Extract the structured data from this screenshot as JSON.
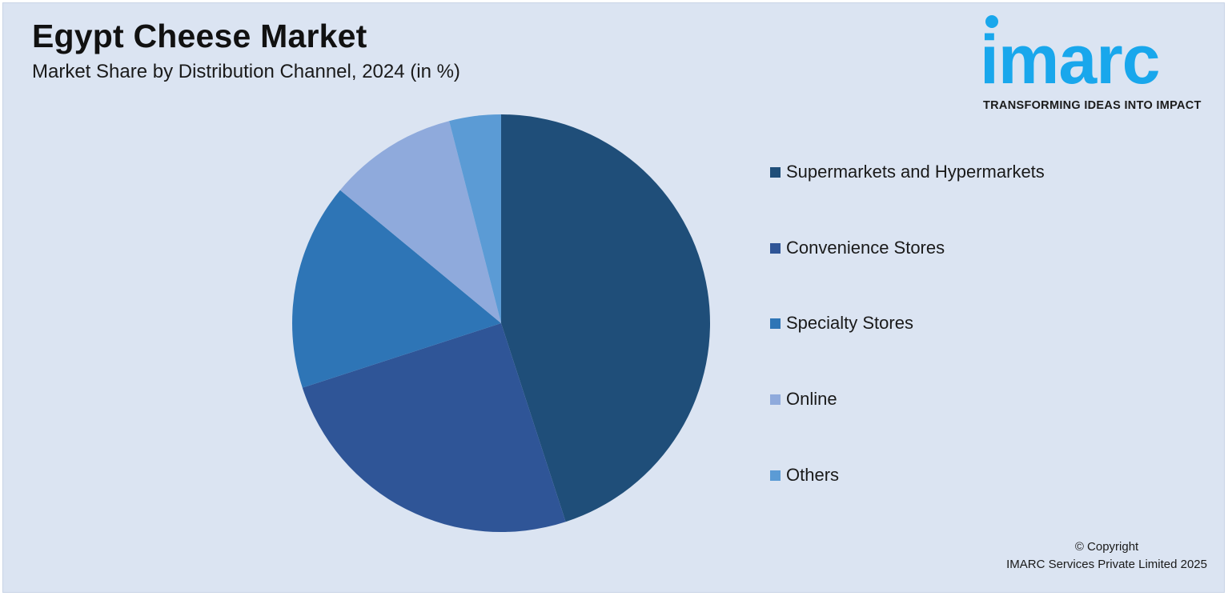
{
  "header": {
    "title": "Egypt Cheese Market",
    "subtitle": "Market Share by Distribution Channel, 2024 (in %)"
  },
  "logo": {
    "word": "imarc",
    "tagline": "TRANSFORMING IDEAS INTO IMPACT"
  },
  "footer": {
    "copyright_line1": "© Copyright",
    "copyright_line2": "IMARC Services Private Limited 2025"
  },
  "colors": {
    "background": "#dbe4f2",
    "brand": "#19a7ec"
  },
  "chart_data": {
    "type": "pie",
    "title": "Egypt Cheese Market",
    "subtitle": "Market Share by Distribution Channel, 2024 (in %)",
    "legend_position": "right",
    "categories": [
      "Supermarkets and Hypermarkets",
      "Convenience Stores",
      "Specialty Stores",
      "Online",
      "Others"
    ],
    "values": [
      45,
      25,
      16,
      10,
      4
    ],
    "colors": [
      "#1f4e79",
      "#2f5597",
      "#2e75b6",
      "#8faadc",
      "#5b9bd5"
    ]
  }
}
